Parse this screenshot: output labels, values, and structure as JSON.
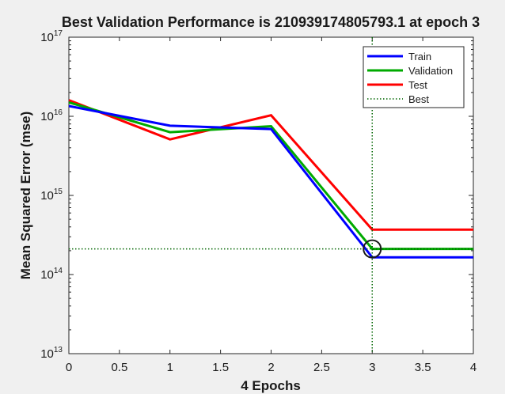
{
  "chart_data": {
    "type": "line",
    "title": "Best Validation Performance is 210939174805793.1 at epoch 3",
    "xlabel": "4 Epochs",
    "ylabel": "Mean Squared Error  (mse)",
    "xlim": [
      0,
      4
    ],
    "ylim": [
      10000000000000.0,
      1e+17
    ],
    "yscale": "log",
    "grid": false,
    "legend_position": "top-right",
    "x_ticks": [
      0,
      0.5,
      1,
      1.5,
      2,
      2.5,
      3,
      3.5,
      4
    ],
    "x_tick_labels": [
      "0",
      "0.5",
      "1",
      "1.5",
      "2",
      "2.5",
      "3",
      "3.5",
      "4"
    ],
    "y_ticks": [
      10000000000000.0,
      100000000000000.0,
      1000000000000000.0,
      1e+16,
      1e+17
    ],
    "y_tick_labels": [
      {
        "base": "10",
        "exp": "13"
      },
      {
        "base": "10",
        "exp": "14"
      },
      {
        "base": "10",
        "exp": "15"
      },
      {
        "base": "10",
        "exp": "16"
      },
      {
        "base": "10",
        "exp": "17"
      }
    ],
    "x": [
      0,
      1,
      2,
      3,
      4
    ],
    "series": [
      {
        "name": "Train",
        "color": "#0000ff",
        "values": [
          1.35e+16,
          7600000000000000.0,
          6900000000000000.0,
          165000000000000.0,
          165000000000000.0
        ]
      },
      {
        "name": "Validation",
        "color": "#00aa00",
        "values": [
          1.5e+16,
          6300000000000000.0,
          7500000000000000.0,
          211000000000000.0,
          211000000000000.0
        ]
      },
      {
        "name": "Test",
        "color": "#ff0000",
        "values": [
          1.6e+16,
          5100000000000000.0,
          1.03e+16,
          370000000000000.0,
          370000000000000.0
        ]
      }
    ],
    "best": {
      "name": "Best",
      "color": "#006600",
      "epoch": 3,
      "value": 210939174805793.0
    }
  }
}
